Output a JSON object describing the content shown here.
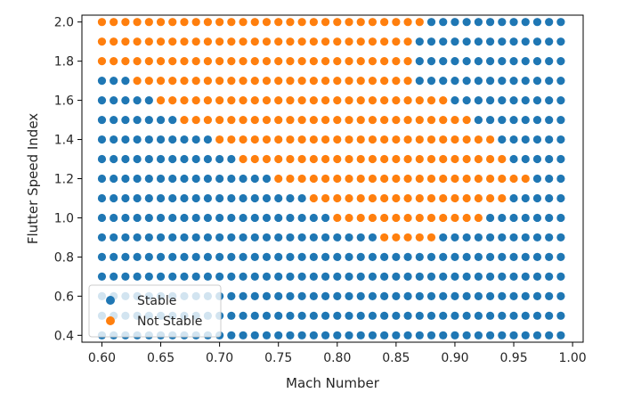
{
  "chart_data": {
    "type": "scatter",
    "xlabel": "Mach Number",
    "ylabel": "Flutter Speed Index",
    "xlim": [
      0.583,
      1.009
    ],
    "ylim": [
      0.365,
      2.035
    ],
    "x_ticks": [
      "0.60",
      "0.65",
      "0.70",
      "0.75",
      "0.80",
      "0.85",
      "0.90",
      "0.95",
      "1.00"
    ],
    "y_ticks": [
      "0.4",
      "0.6",
      "0.8",
      "1.0",
      "1.2",
      "1.4",
      "1.6",
      "1.8",
      "2.0"
    ],
    "grid": false,
    "legend_position": "lower-left",
    "x_values": {
      "start": 0.6,
      "end": 0.99,
      "step": 0.01
    },
    "y_values": {
      "start": 0.4,
      "end": 2.0,
      "step": 0.1
    },
    "series": [
      {
        "name": "Stable",
        "color": "#1f77b4",
        "rule": "all grid points outside the Not Stable ranges"
      },
      {
        "name": "Not Stable",
        "color": "#ff7f0e"
      }
    ],
    "not_stable_ranges": [
      {
        "y": 0.9,
        "x_min": 0.84,
        "x_max": 0.88
      },
      {
        "y": 1.0,
        "x_min": 0.8,
        "x_max": 0.92
      },
      {
        "y": 1.1,
        "x_min": 0.78,
        "x_max": 0.94
      },
      {
        "y": 1.2,
        "x_min": 0.75,
        "x_max": 0.96
      },
      {
        "y": 1.3,
        "x_min": 0.72,
        "x_max": 0.94
      },
      {
        "y": 1.4,
        "x_min": 0.7,
        "x_max": 0.93
      },
      {
        "y": 1.5,
        "x_min": 0.67,
        "x_max": 0.91
      },
      {
        "y": 1.6,
        "x_min": 0.65,
        "x_max": 0.89
      },
      {
        "y": 1.7,
        "x_min": 0.63,
        "x_max": 0.86
      },
      {
        "y": 1.8,
        "x_min": 0.6,
        "x_max": 0.86
      },
      {
        "y": 1.9,
        "x_min": 0.6,
        "x_max": 0.86
      },
      {
        "y": 2.0,
        "x_min": 0.6,
        "x_max": 0.87
      }
    ]
  }
}
